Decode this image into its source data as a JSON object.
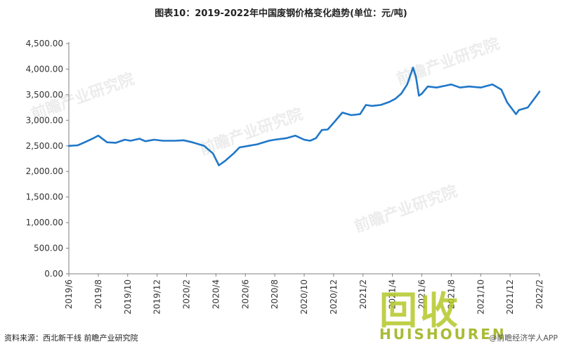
{
  "title": "图表10：2019-2022年中国废钢价格变化趋势(单位：元/吨)",
  "footer": {
    "source": "资料来源：西北新干线 前瞻产业研究院",
    "credit": "@前瞻经济学人APP"
  },
  "watermarks": [
    "前瞻产业研究院",
    "前瞻产业研究院",
    "前瞻产业研究院",
    "前瞻产业研究院"
  ],
  "overlay_logo": {
    "glyphs": "回收",
    "brand": "HUISHOUREN"
  },
  "chart_data": {
    "type": "line",
    "title": "图表10：2019-2022年中国废钢价格变化趋势(单位：元/吨)",
    "xlabel": "",
    "ylabel": "",
    "ylim": [
      0,
      4500
    ],
    "yticks": [
      0,
      500,
      1000,
      1500,
      2000,
      2500,
      3000,
      3500,
      4000,
      4500
    ],
    "ytick_labels": [
      "0.00",
      "500.00",
      "1,000.00",
      "1,500.00",
      "2,000.00",
      "2,500.00",
      "3,000.00",
      "3,500.00",
      "4,000.00",
      "4,500.00"
    ],
    "x_tick_labels": [
      "2019/6",
      "2019/8",
      "2019/10",
      "2019/12",
      "2020/2",
      "2020/4",
      "2020/6",
      "2020/8",
      "2020/10",
      "2020/12",
      "2021/2",
      "2021/4",
      "2021/6",
      "2021/8",
      "2021/10",
      "2021/12",
      "2022/2"
    ],
    "grid": false,
    "line_color": "#1f77c8",
    "series": [
      {
        "x": [
          0,
          0.3,
          0.5,
          0.8,
          1.0,
          1.3,
          1.6,
          1.9,
          2.1,
          2.4,
          2.6,
          2.9,
          3.2,
          3.6,
          3.9,
          4.2,
          4.6,
          4.9,
          5.1,
          5.3,
          5.6,
          5.8,
          6.1,
          6.4,
          6.8,
          7.0,
          7.4,
          7.7,
          8.0,
          8.2,
          8.4,
          8.6,
          8.8,
          9.0,
          9.3,
          9.6,
          9.9,
          10.1,
          10.3,
          10.6,
          10.9,
          11.1,
          11.3,
          11.5,
          11.7,
          11.8,
          11.9,
          12.0,
          12.2,
          12.5,
          13.0,
          13.3,
          13.6,
          14.0,
          14.4,
          14.7,
          14.9,
          15.2,
          15.3,
          15.6,
          15.9,
          16.0
        ],
        "y": [
          2500,
          2510,
          2560,
          2640,
          2700,
          2570,
          2560,
          2620,
          2600,
          2640,
          2590,
          2620,
          2600,
          2600,
          2610,
          2570,
          2500,
          2350,
          2120,
          2200,
          2350,
          2470,
          2500,
          2530,
          2600,
          2620,
          2650,
          2700,
          2620,
          2600,
          2650,
          2810,
          2820,
          2950,
          3150,
          3100,
          3120,
          3300,
          3280,
          3300,
          3360,
          3420,
          3520,
          3700,
          4030,
          3850,
          3480,
          3520,
          3660,
          3640,
          3700,
          3640,
          3660,
          3640,
          3700,
          3600,
          3350,
          3120,
          3200,
          3250,
          3480,
          3560
        ]
      }
    ]
  }
}
